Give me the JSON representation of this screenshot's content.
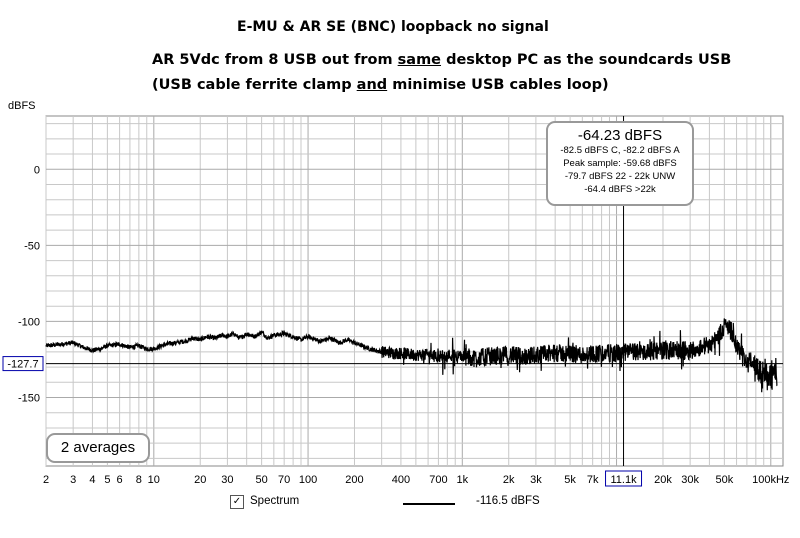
{
  "header": {
    "title": "E-MU & AR SE (BNC) loopback no signal",
    "line2_a": "AR 5Vdc from 8 USB out from ",
    "line2_u": "same",
    "line2_b": " desktop PC as the soundcards USB",
    "line3_a": "(USB cable ferrite clamp ",
    "line3_u": "and",
    "line3_b": " minimise USB cables loop)"
  },
  "readout": {
    "main": "-64.23 dBFS",
    "lines": [
      "-82.5 dBFS C, -82.2 dBFS A",
      "Peak sample: -59.68 dBFS",
      "-79.7 dBFS 22 - 22k UNW",
      "-64.4 dBFS >22k"
    ]
  },
  "averages_label": "2 averages",
  "legend": {
    "checked": true,
    "label": "Spectrum",
    "value": "-116.5 dBFS"
  },
  "colors": {
    "trace": "#000000",
    "grid": "#c8c8c8",
    "grid_major": "#aaaaaa",
    "cursor_box": "#0000aa"
  },
  "chart_data": {
    "type": "line",
    "ylabel": "dBFS",
    "xscale": "log",
    "xlim": [
      2,
      120000
    ],
    "ylim": [
      -195,
      35
    ],
    "yticks": [
      0,
      -50,
      -100,
      -150
    ],
    "xtick_labels": [
      {
        "v": 2,
        "t": "2"
      },
      {
        "v": 3,
        "t": "3"
      },
      {
        "v": 4,
        "t": "4"
      },
      {
        "v": 5,
        "t": "5"
      },
      {
        "v": 6,
        "t": "6"
      },
      {
        "v": 8,
        "t": "8"
      },
      {
        "v": 10,
        "t": "10"
      },
      {
        "v": 20,
        "t": "20"
      },
      {
        "v": 30,
        "t": "30"
      },
      {
        "v": 50,
        "t": "50"
      },
      {
        "v": 70,
        "t": "70"
      },
      {
        "v": 100,
        "t": "100"
      },
      {
        "v": 200,
        "t": "200"
      },
      {
        "v": 400,
        "t": "400"
      },
      {
        "v": 700,
        "t": "700"
      },
      {
        "v": 1000,
        "t": "1k"
      },
      {
        "v": 2000,
        "t": "2k"
      },
      {
        "v": 3000,
        "t": "3k"
      },
      {
        "v": 5000,
        "t": "5k"
      },
      {
        "v": 7000,
        "t": "7k"
      },
      {
        "v": 20000,
        "t": "20k"
      },
      {
        "v": 30000,
        "t": "30k"
      },
      {
        "v": 50000,
        "t": "50k"
      },
      {
        "v": 100000,
        "t": "100kHz"
      }
    ],
    "cursor": {
      "x": 11100,
      "x_label": "11.1k",
      "y": -127.7,
      "y_label": "-127.7"
    },
    "series": [
      {
        "x": [
          2,
          2.5,
          3,
          3.5,
          4,
          4.5,
          5,
          6,
          7,
          8,
          9,
          10,
          12,
          14,
          16,
          18,
          20,
          22,
          25,
          28,
          30,
          33,
          36,
          40,
          45,
          50,
          55,
          60,
          70,
          80,
          90,
          100,
          120,
          140,
          160,
          180,
          200,
          250,
          300,
          400,
          500,
          600,
          700,
          800,
          1000,
          1200,
          1500,
          2000,
          2500,
          3000,
          4000,
          5000,
          6000,
          7000,
          8000,
          10000,
          12000,
          15000,
          20000,
          25000,
          30000,
          35000,
          40000,
          45000,
          50000,
          55000,
          60000,
          70000,
          80000,
          90000,
          100000,
          110000
        ],
        "y": [
          -116,
          -115,
          -114,
          -117,
          -119,
          -118,
          -116,
          -115,
          -117,
          -116,
          -118,
          -118,
          -115,
          -114,
          -113,
          -111,
          -112,
          -110,
          -111,
          -109,
          -110,
          -108,
          -111,
          -108,
          -110,
          -107,
          -111,
          -109,
          -108,
          -110,
          -112,
          -110,
          -113,
          -111,
          -114,
          -112,
          -114,
          -118,
          -120,
          -121,
          -122,
          -122,
          -123,
          -122,
          -123,
          -124,
          -123,
          -122,
          -123,
          -122,
          -121,
          -121,
          -122,
          -121,
          -121,
          -121,
          -120,
          -120,
          -119,
          -119,
          -119,
          -117,
          -115,
          -111,
          -103,
          -105,
          -117,
          -126,
          -127,
          -128,
          -129,
          -128
        ]
      }
    ]
  }
}
